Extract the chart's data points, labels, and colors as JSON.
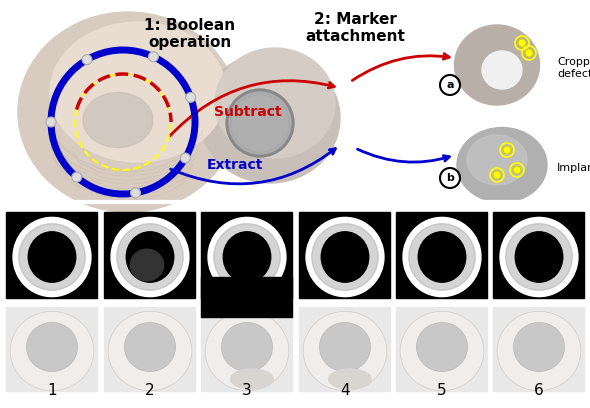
{
  "title_bool": "1: Boolean\noperation",
  "title_marker": "2: Marker\nattachment",
  "label_subtract": "Subtract",
  "label_extract": "Extract",
  "label_a": "a",
  "label_b": "b",
  "label_cropped": "Cropped\ndefect",
  "label_implant": "Implant",
  "bottom_labels": [
    "1",
    "2",
    "3",
    "4",
    "5",
    "6"
  ],
  "bg_color": "#ffffff",
  "red_color": "#cc0000",
  "blue_color": "#0000cc",
  "yellow_color": "#ffff00",
  "dark_navy": "#000080",
  "text_color": "#000000",
  "figsize": [
    5.9,
    4.08
  ],
  "dpi": 100
}
